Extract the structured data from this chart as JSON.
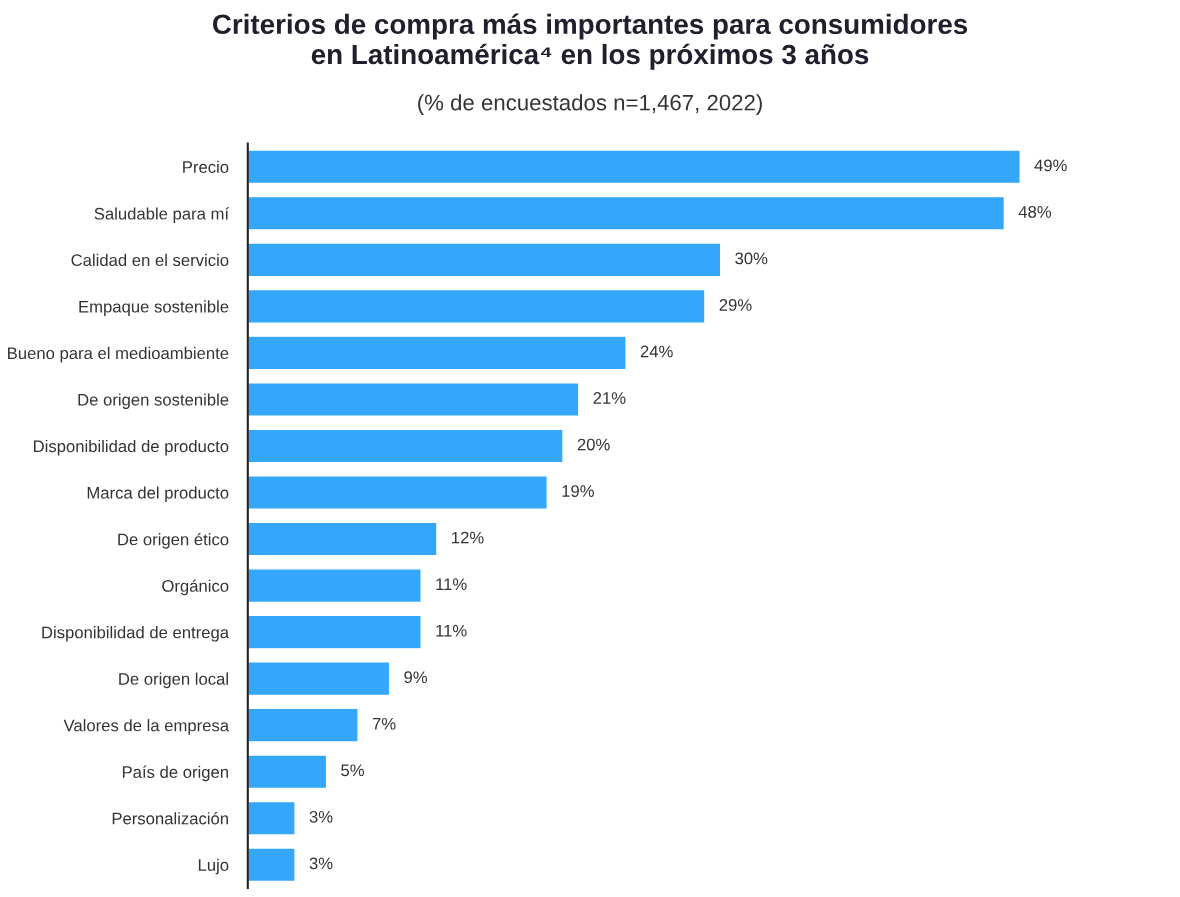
{
  "chart_data": {
    "type": "bar",
    "orientation": "horizontal",
    "title": "Criterios de compra más importantes para consumidores\nen Latinoamérica⁴ en los próximos 3 años",
    "subtitle": "(% de encuestados n=1,467, 2022)",
    "categories": [
      "Precio",
      "Saludable para mí",
      "Calidad en el servicio",
      "Empaque sostenible",
      "Bueno para el medioambiente",
      "De origen sostenible",
      "Disponibilidad de producto",
      "Marca del producto",
      "De origen ético",
      "Orgánico",
      "Disponibilidad de entrega",
      "De origen local",
      "Valores de la empresa",
      "País de origen",
      "Personalización",
      "Lujo"
    ],
    "values": [
      49,
      48,
      30,
      29,
      24,
      21,
      20,
      19,
      12,
      11,
      11,
      9,
      7,
      5,
      3,
      3
    ],
    "value_labels": [
      "49%",
      "48%",
      "30%",
      "29%",
      "24%",
      "21%",
      "20%",
      "19%",
      "12%",
      "11%",
      "11%",
      "9%",
      "7%",
      "5%",
      "3%",
      "3%"
    ],
    "color": "#35a7fa",
    "tick_labels": "y"
  }
}
